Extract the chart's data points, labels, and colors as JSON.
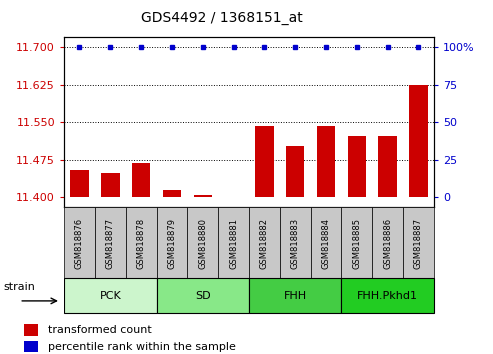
{
  "title": "GDS4492 / 1368151_at",
  "samples": [
    "GSM818876",
    "GSM818877",
    "GSM818878",
    "GSM818879",
    "GSM818880",
    "GSM818881",
    "GSM818882",
    "GSM818883",
    "GSM818884",
    "GSM818885",
    "GSM818886",
    "GSM818887"
  ],
  "bar_values": [
    11.455,
    11.448,
    11.468,
    11.415,
    11.405,
    11.4,
    11.543,
    11.502,
    11.542,
    11.523,
    11.523,
    11.625
  ],
  "percentile_values": [
    100,
    100,
    100,
    100,
    100,
    100,
    100,
    100,
    100,
    100,
    100,
    100
  ],
  "bar_bottom": 11.4,
  "ylim_left": [
    11.38,
    11.72
  ],
  "ylim_right": [
    -13.33,
    100
  ],
  "yticks_left": [
    11.4,
    11.475,
    11.55,
    11.625,
    11.7
  ],
  "yticks_right": [
    0,
    25,
    50,
    75,
    100
  ],
  "bar_color": "#cc0000",
  "dot_color": "#0000cc",
  "groups": [
    {
      "label": "PCK",
      "start": 0,
      "end": 3,
      "color": "#ccf5cc"
    },
    {
      "label": "SD",
      "start": 3,
      "end": 6,
      "color": "#88e888"
    },
    {
      "label": "FHH",
      "start": 6,
      "end": 9,
      "color": "#44cc44"
    },
    {
      "label": "FHH.Pkhd1",
      "start": 9,
      "end": 12,
      "color": "#22cc22"
    }
  ],
  "group_bar_bg": "#c8c8c8",
  "strain_label": "strain",
  "legend_bar_label": "transformed count",
  "legend_dot_label": "percentile rank within the sample",
  "hlines": [
    11.475,
    11.55,
    11.625
  ],
  "right_axis_label_100": "100%"
}
